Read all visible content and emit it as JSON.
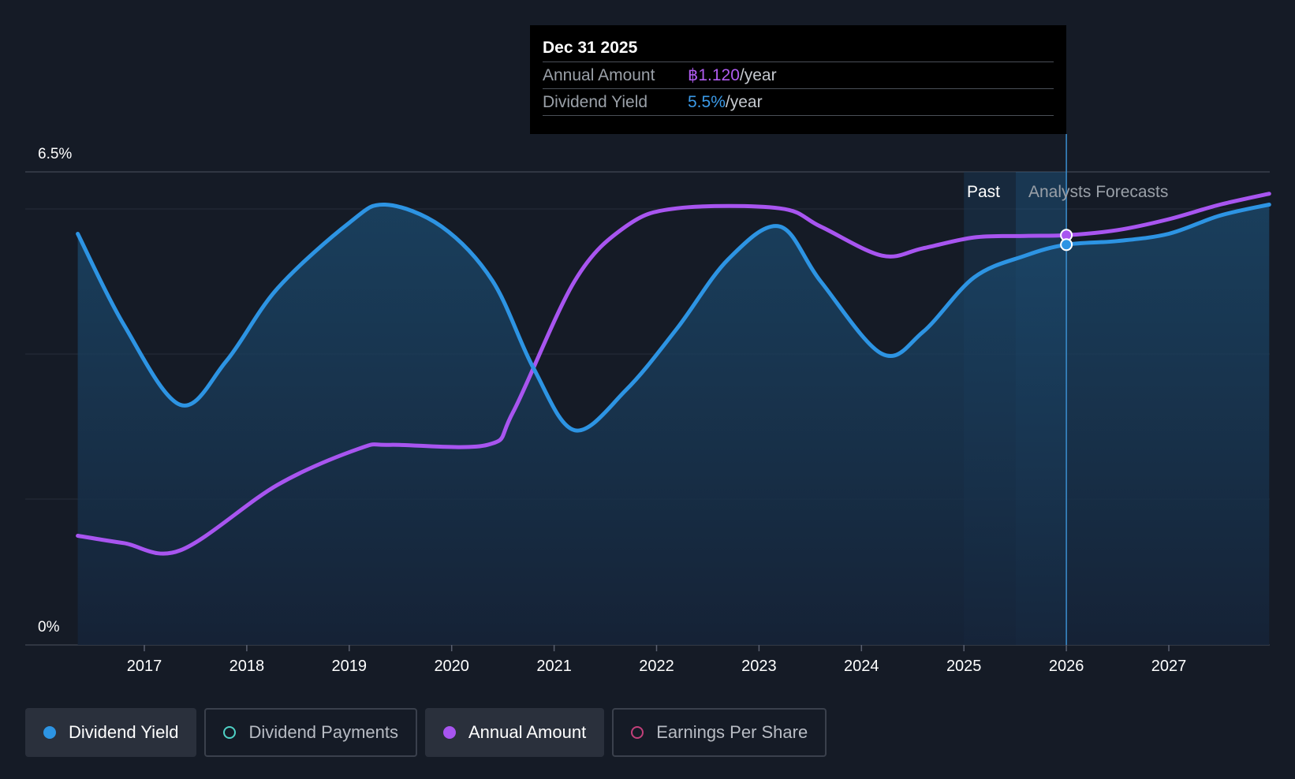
{
  "chart_data": {
    "type": "line",
    "y_axis": {
      "top_label": "6.5%",
      "bottom_label": "0%",
      "ylim": [
        0,
        6.5
      ]
    },
    "x_ticks": [
      "2017",
      "2018",
      "2019",
      "2020",
      "2021",
      "2022",
      "2023",
      "2024",
      "2025",
      "2026",
      "2027"
    ],
    "regions": {
      "past_label": "Past",
      "forecast_label": "Analysts Forecasts"
    },
    "series": [
      {
        "name": "Dividend Yield",
        "color": "#2d94e3",
        "points": [
          [
            2016.35,
            5.65
          ],
          [
            2016.8,
            4.4
          ],
          [
            2017.35,
            3.3
          ],
          [
            2017.8,
            3.9
          ],
          [
            2018.3,
            4.9
          ],
          [
            2019.0,
            5.8
          ],
          [
            2019.35,
            6.05
          ],
          [
            2019.9,
            5.75
          ],
          [
            2020.4,
            5.0
          ],
          [
            2020.8,
            3.8
          ],
          [
            2021.2,
            2.95
          ],
          [
            2021.7,
            3.5
          ],
          [
            2022.2,
            4.35
          ],
          [
            2022.7,
            5.3
          ],
          [
            2023.2,
            5.75
          ],
          [
            2023.6,
            5.0
          ],
          [
            2024.2,
            4.0
          ],
          [
            2024.6,
            4.3
          ],
          [
            2025.1,
            5.05
          ],
          [
            2025.6,
            5.35
          ],
          [
            2026.0,
            5.5
          ],
          [
            2026.5,
            5.55
          ],
          [
            2027.0,
            5.65
          ],
          [
            2027.5,
            5.9
          ],
          [
            2027.98,
            6.05
          ]
        ]
      },
      {
        "name": "Annual Amount",
        "color": "#a855f0",
        "points": [
          [
            2016.35,
            1.5
          ],
          [
            2016.8,
            1.4
          ],
          [
            2017.35,
            1.3
          ],
          [
            2018.3,
            2.2
          ],
          [
            2019.1,
            2.7
          ],
          [
            2019.4,
            2.75
          ],
          [
            2020.35,
            2.75
          ],
          [
            2020.6,
            3.2
          ],
          [
            2021.2,
            5.0
          ],
          [
            2021.7,
            5.75
          ],
          [
            2022.2,
            6.0
          ],
          [
            2023.2,
            6.0
          ],
          [
            2023.6,
            5.75
          ],
          [
            2024.2,
            5.35
          ],
          [
            2024.6,
            5.45
          ],
          [
            2025.1,
            5.6
          ],
          [
            2025.6,
            5.62
          ],
          [
            2026.0,
            5.63
          ],
          [
            2026.5,
            5.7
          ],
          [
            2027.0,
            5.85
          ],
          [
            2027.5,
            6.05
          ],
          [
            2027.98,
            6.2
          ]
        ]
      }
    ]
  },
  "tooltip": {
    "date": "Dec 31 2025",
    "annual_label": "Annual Amount",
    "annual_value": "฿1.120",
    "annual_unit": "/year",
    "yield_label": "Dividend Yield",
    "yield_value": "5.5%",
    "yield_unit": "/year"
  },
  "legend": [
    {
      "label": "Dividend Yield",
      "color": "#2d94e3",
      "active": true
    },
    {
      "label": "Dividend Payments",
      "color": "#4fd1c5",
      "active": false
    },
    {
      "label": "Annual Amount",
      "color": "#a855f0",
      "active": true
    },
    {
      "label": "Earnings Per Share",
      "color": "#c2407a",
      "active": false
    }
  ]
}
